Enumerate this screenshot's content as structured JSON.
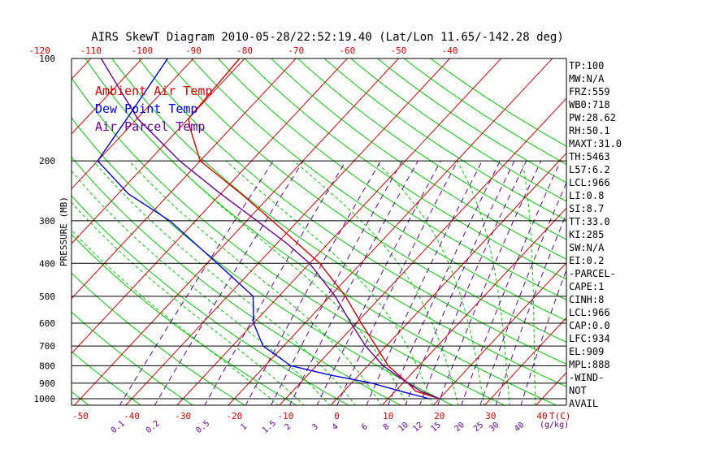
{
  "chart_data": {
    "type": "line",
    "title": "AIRS SkewT Diagram 2010-05-28/22:52:19.40 (Lat/Lon 11.65/-142.28 deg)",
    "ylabel": "PRESSURE (MB)",
    "xlabel_right": "T(C)",
    "mixing_label": "(g/kg)",
    "y_scale": "log",
    "ylim": [
      1050,
      100
    ],
    "xlim_bottom": [
      -50,
      40
    ],
    "pressure_ticks": [
      100,
      200,
      300,
      400,
      500,
      600,
      700,
      800,
      900,
      1000
    ],
    "bottom_temp_ticks": [
      -50,
      -40,
      -30,
      -20,
      -10,
      0,
      10,
      20,
      30,
      40
    ],
    "top_temp_ticks": [
      -120,
      -110,
      -100,
      -90,
      -80,
      -70,
      -60,
      -50,
      -40
    ],
    "mixing_ratio_labels": [
      "0.1",
      "0.2",
      "0.5",
      "1",
      "1.5",
      "2",
      "3",
      "4",
      "6",
      "8",
      "10",
      "12",
      "15",
      "20",
      "25",
      "30",
      "40"
    ],
    "legend": [
      {
        "label": "Ambient Air Temp",
        "color": "#dd0000"
      },
      {
        "label": "Dew Point Temp",
        "color": "#0000dd"
      },
      {
        "label": "Air Parcel Temp",
        "color": "#660099"
      }
    ],
    "series": [
      {
        "name": "Ambient Air Temp",
        "color": "#dd0000",
        "points": [
          [
            100,
            -81
          ],
          [
            150,
            -80
          ],
          [
            160,
            -78
          ],
          [
            200,
            -70
          ],
          [
            250,
            -56
          ],
          [
            300,
            -45
          ],
          [
            400,
            -28
          ],
          [
            500,
            -17
          ],
          [
            600,
            -9
          ],
          [
            700,
            -2
          ],
          [
            800,
            4
          ],
          [
            900,
            11
          ],
          [
            950,
            14
          ],
          [
            1000,
            20
          ]
        ]
      },
      {
        "name": "Dew Point Temp",
        "color": "#0000dd",
        "points": [
          [
            100,
            -95
          ],
          [
            150,
            -92
          ],
          [
            200,
            -90
          ],
          [
            250,
            -78
          ],
          [
            300,
            -65
          ],
          [
            400,
            -48
          ],
          [
            500,
            -35
          ],
          [
            600,
            -30
          ],
          [
            700,
            -24
          ],
          [
            800,
            -15
          ],
          [
            850,
            -6
          ],
          [
            900,
            4
          ],
          [
            950,
            11
          ],
          [
            1000,
            18
          ]
        ]
      },
      {
        "name": "Air Parcel Temp",
        "color": "#660099",
        "points": [
          [
            100,
            -108
          ],
          [
            150,
            -90
          ],
          [
            200,
            -74
          ],
          [
            250,
            -60
          ],
          [
            300,
            -48
          ],
          [
            350,
            -38
          ],
          [
            400,
            -30
          ],
          [
            500,
            -19
          ],
          [
            600,
            -11
          ],
          [
            700,
            -4
          ],
          [
            800,
            3
          ],
          [
            900,
            11
          ],
          [
            950,
            15
          ],
          [
            1000,
            20
          ]
        ]
      }
    ],
    "indices": [
      "TP:100",
      "MW:N/A",
      "FRZ:559",
      "WB0:718",
      "PW:28.62",
      "RH:50.1",
      "MAXT:31.0",
      "TH:5463",
      "L57:6.2",
      "LCL:966",
      "LI:0.8",
      "SI:8.7",
      "TT:33.0",
      "KI:285",
      "SW:N/A",
      "EI:0.2",
      "-PARCEL-",
      "CAPE:1",
      "CINH:8",
      "LCL:966",
      "CAP:0.0",
      "LFC:934",
      "EL:909",
      "MPL:888",
      "-WIND-",
      "NOT",
      "AVAIL"
    ],
    "colors": {
      "isotherm": "#dd0000",
      "dry_adiabat": "#00cc00",
      "moist_adiabat": "#00cc00",
      "mixing_ratio": "#660099",
      "isobar": "#000000"
    }
  }
}
